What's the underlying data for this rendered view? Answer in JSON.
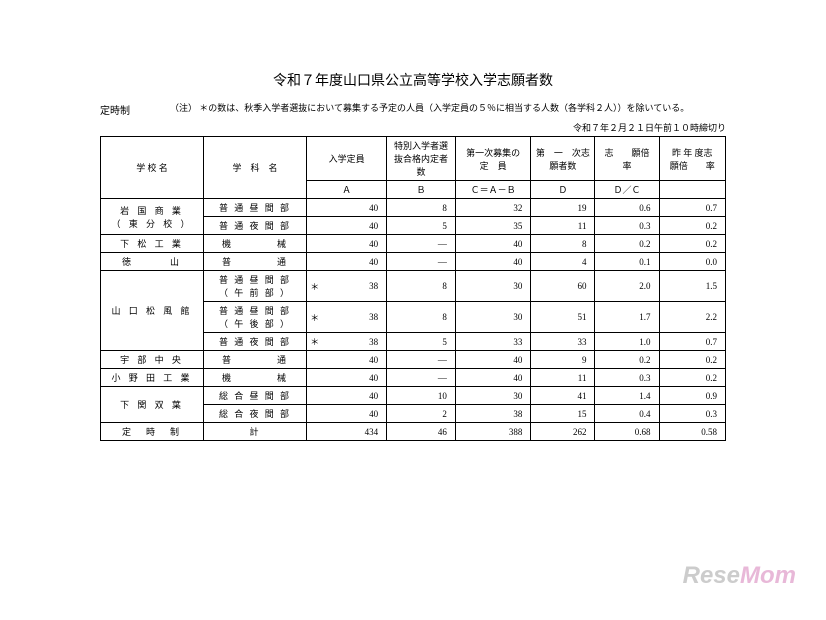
{
  "title": "令和７年度山口県公立高等学校入学志願者数",
  "category": "定時制",
  "note_label": "（注）",
  "note_text": "＊の数は、秋季入学者選抜において募集する予定の人員（入学定員の５％に相当する人数（各学科２人））を除いている。",
  "date": "令和７年２月２１日午前１０時締切り",
  "headers": {
    "school": "学 校 名",
    "dept": "学　科　名",
    "a_top": "入学定員",
    "a_bot": "Ａ",
    "b_top": "特別入学者選抜合格内定者数",
    "b_bot": "Ｂ",
    "c_top": "第一次募集の　定　員",
    "c_bot": "Ｃ＝Ａ－Ｂ",
    "d_top": "第　一　次志願者数",
    "d_bot": "Ｄ",
    "e_top": "志　　願倍　　率",
    "e_bot": "Ｄ／Ｃ",
    "f_top": "昨 年 度志　　願倍　　率",
    "f_bot": ""
  },
  "rows": [
    {
      "school": "岩 国 商 業\n（ 東 分 校 ）",
      "school_rows": 2,
      "dept": "普 通 昼 間 部",
      "star": "",
      "a": "40",
      "b": "8",
      "c": "32",
      "d": "19",
      "e": "0.6",
      "f": "0.7"
    },
    {
      "dept": "普 通 夜 間 部",
      "star": "",
      "a": "40",
      "b": "5",
      "c": "35",
      "d": "11",
      "e": "0.3",
      "f": "0.2"
    },
    {
      "school": "下 松 工 業",
      "school_rows": 1,
      "dept": "機　　　　械",
      "star": "",
      "a": "40",
      "b": "―",
      "c": "40",
      "d": "8",
      "e": "0.2",
      "f": "0.2"
    },
    {
      "school": "徳　　　山",
      "school_rows": 1,
      "dept": "普　　　　通",
      "star": "",
      "a": "40",
      "b": "―",
      "c": "40",
      "d": "4",
      "e": "0.1",
      "f": "0.0"
    },
    {
      "school": "山 口 松 風 館",
      "school_rows": 3,
      "dept": "普 通 昼 間 部\n（ 午 前 部 ）",
      "star": "＊",
      "a": "38",
      "b": "8",
      "c": "30",
      "d": "60",
      "e": "2.0",
      "f": "1.5"
    },
    {
      "dept": "普 通 昼 間 部\n（ 午 後 部 ）",
      "star": "＊",
      "a": "38",
      "b": "8",
      "c": "30",
      "d": "51",
      "e": "1.7",
      "f": "2.2"
    },
    {
      "dept": "普 通 夜 間 部",
      "star": "＊",
      "a": "38",
      "b": "5",
      "c": "33",
      "d": "33",
      "e": "1.0",
      "f": "0.7"
    },
    {
      "school": "宇 部 中 央",
      "school_rows": 1,
      "dept": "普　　　　通",
      "star": "",
      "a": "40",
      "b": "―",
      "c": "40",
      "d": "9",
      "e": "0.2",
      "f": "0.2"
    },
    {
      "school": "小 野 田 工 業",
      "school_rows": 1,
      "dept": "機　　　　械",
      "star": "",
      "a": "40",
      "b": "―",
      "c": "40",
      "d": "11",
      "e": "0.3",
      "f": "0.2"
    },
    {
      "school": "下 関 双 葉",
      "school_rows": 2,
      "dept": "総 合 昼 間 部",
      "star": "",
      "a": "40",
      "b": "10",
      "c": "30",
      "d": "41",
      "e": "1.4",
      "f": "0.9"
    },
    {
      "dept": "総 合 夜 間 部",
      "star": "",
      "a": "40",
      "b": "2",
      "c": "38",
      "d": "15",
      "e": "0.4",
      "f": "0.3"
    }
  ],
  "total": {
    "label": "定　時　制",
    "sublabel": "計",
    "a": "434",
    "b": "46",
    "c": "388",
    "d": "262",
    "e": "0.68",
    "f": "0.58"
  },
  "watermark": {
    "part1": "Rese",
    "part2": "Mom"
  },
  "col_widths": {
    "school": "90px",
    "dept": "90px",
    "star": "14px",
    "num": "60px"
  }
}
